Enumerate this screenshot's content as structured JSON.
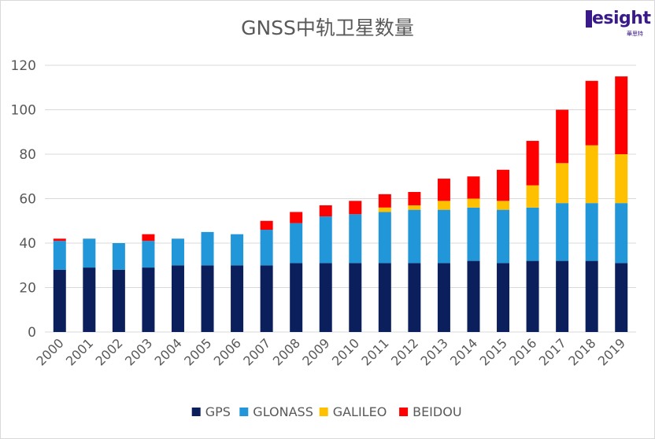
{
  "brand": {
    "name": "esight",
    "subtitle": "華思特"
  },
  "colors": {
    "GPS": "#0b1f5c",
    "GLONASS": "#2196d9",
    "GALILEO": "#ffc000",
    "BEIDOU": "#ff0000",
    "axis_text": "#595959",
    "grid": "#d9d9d9"
  },
  "chart_data": {
    "type": "bar",
    "stacked": true,
    "title": "GNSS中轨卫星数量",
    "xlabel": "",
    "ylabel": "",
    "ylim": [
      0,
      120
    ],
    "yticks": [
      0,
      20,
      40,
      60,
      80,
      100,
      120
    ],
    "categories": [
      "2000",
      "2001",
      "2002",
      "2003",
      "2004",
      "2005",
      "2006",
      "2007",
      "2008",
      "2009",
      "2010",
      "2011",
      "2012",
      "2013",
      "2014",
      "2015",
      "2016",
      "2017",
      "2018",
      "2019"
    ],
    "series": [
      {
        "name": "GPS",
        "values": [
          28,
          29,
          28,
          29,
          30,
          30,
          30,
          30,
          31,
          31,
          31,
          31,
          31,
          31,
          32,
          31,
          32,
          32,
          32,
          31
        ]
      },
      {
        "name": "GLONASS",
        "values": [
          13,
          13,
          12,
          12,
          12,
          15,
          14,
          16,
          18,
          21,
          22,
          23,
          24,
          24,
          24,
          24,
          24,
          26,
          26,
          27
        ]
      },
      {
        "name": "GALILEO",
        "values": [
          0,
          0,
          0,
          0,
          0,
          0,
          0,
          0,
          0,
          0,
          0,
          2,
          2,
          4,
          4,
          4,
          10,
          18,
          26,
          22
        ]
      },
      {
        "name": "BEIDOU",
        "values": [
          1,
          0,
          0,
          3,
          0,
          0,
          0,
          4,
          5,
          5,
          6,
          6,
          6,
          10,
          10,
          14,
          20,
          24,
          29,
          35
        ]
      }
    ],
    "legend": [
      "GPS",
      "GLONASS",
      "GALILEO",
      "BEIDOU"
    ],
    "legend_position": "bottom",
    "grid": true
  }
}
